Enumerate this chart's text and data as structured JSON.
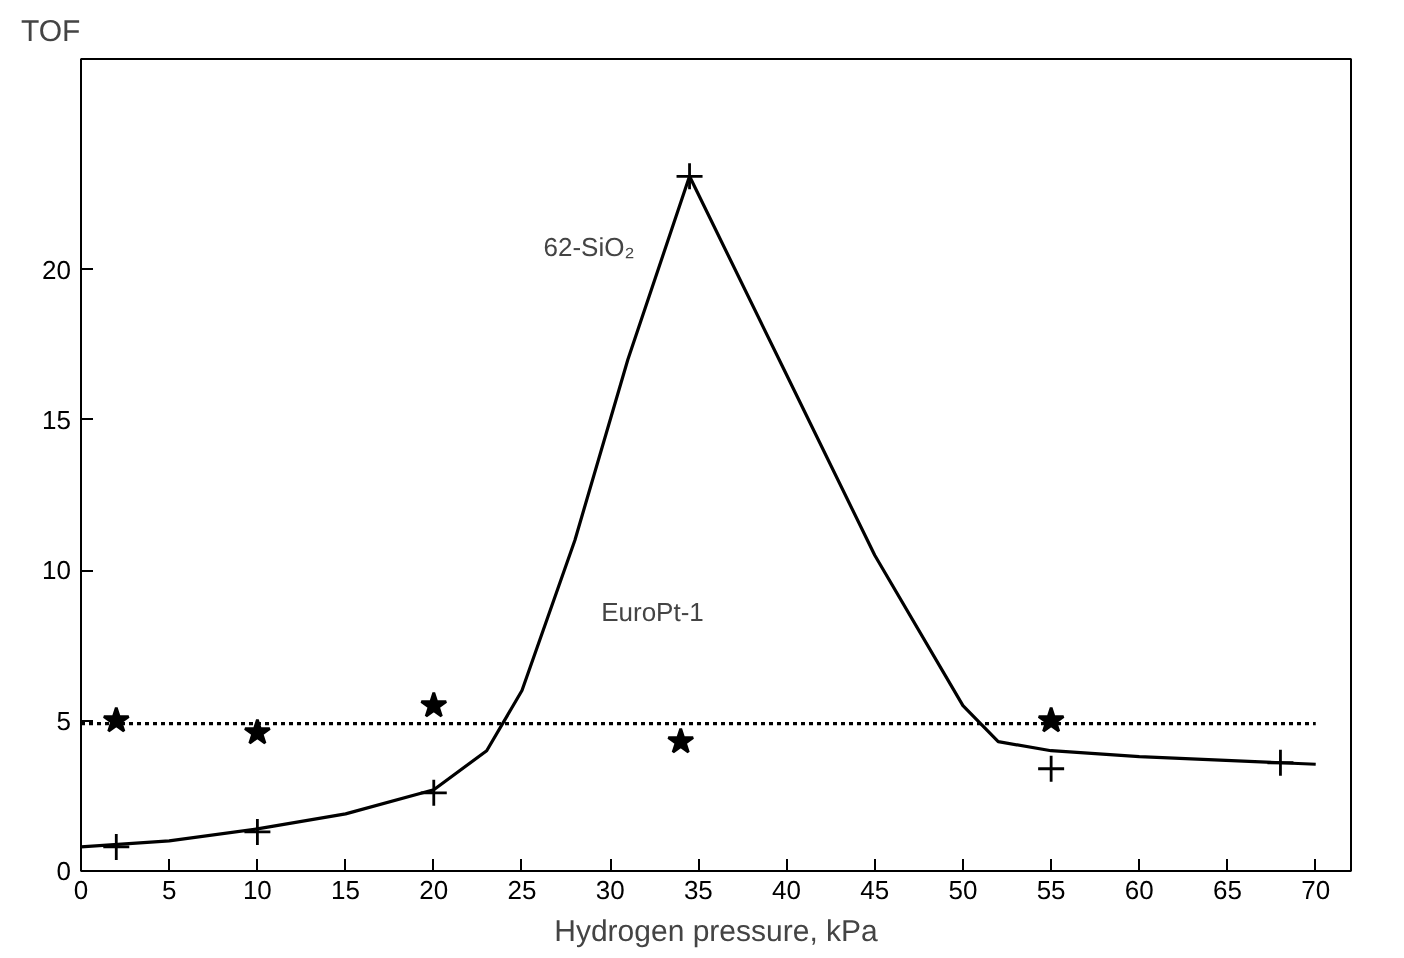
{
  "chart_data": {
    "type": "scatter",
    "ylabel": "TOF",
    "xlabel": "Hydrogen pressure, kPa",
    "xlim": [
      0,
      72
    ],
    "ylim": [
      0,
      27
    ],
    "xticks": [
      0,
      5,
      10,
      15,
      20,
      25,
      30,
      35,
      40,
      45,
      50,
      55,
      60,
      65,
      70
    ],
    "yticks": [
      0,
      5,
      10,
      15,
      20
    ],
    "grid": false,
    "series": [
      {
        "type": "line",
        "color": "#000000",
        "line_style": "solid",
        "marker": "none",
        "x": [
          0,
          5,
          10,
          15,
          20,
          23,
          25,
          28,
          31,
          34.5,
          40,
          45,
          50,
          52,
          55,
          60,
          68,
          70
        ],
        "values": [
          0.8,
          1.0,
          1.4,
          1.9,
          2.7,
          4.0,
          6.0,
          11.0,
          17.0,
          23.1,
          16.5,
          10.5,
          5.5,
          4.3,
          4.0,
          3.8,
          3.6,
          3.55
        ]
      },
      {
        "type": "line",
        "color": "#000000",
        "line_style": "dotted",
        "marker": "none",
        "x": [
          0,
          70
        ],
        "values": [
          4.9,
          4.9
        ]
      },
      {
        "color": "#000000",
        "marker": "cross",
        "x": [
          2,
          10,
          20,
          34.5,
          55,
          68
        ],
        "values": [
          0.8,
          1.3,
          2.6,
          23.1,
          3.4,
          3.6
        ]
      },
      {
        "color": "#000000",
        "marker": "star",
        "x": [
          2,
          10,
          20,
          34,
          55
        ],
        "values": [
          5.0,
          4.6,
          5.5,
          4.3,
          5.0
        ]
      }
    ],
    "annotations": [
      "62-SiO₂",
      "EuroPt-1"
    ]
  }
}
